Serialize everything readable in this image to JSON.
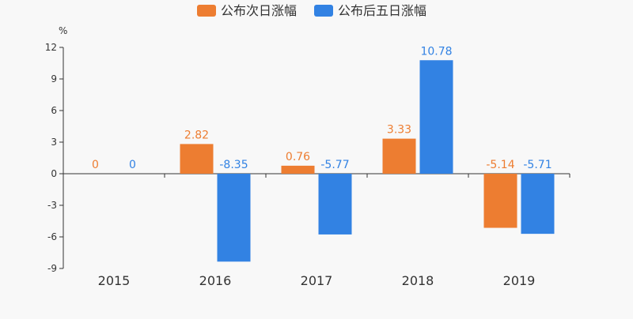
{
  "chart_data": {
    "type": "bar",
    "unit_label": "%",
    "categories": [
      "2015",
      "2016",
      "2017",
      "2018",
      "2019"
    ],
    "series": [
      {
        "name": "公布次日涨幅",
        "color": "#ed7d31",
        "values": [
          0,
          2.82,
          0.76,
          3.33,
          -5.14
        ],
        "labels": [
          "0",
          "2.82",
          "0.76",
          "3.33",
          "-5.14"
        ]
      },
      {
        "name": "公布后五日涨幅",
        "color": "#3282e3",
        "values": [
          0,
          -8.35,
          -5.77,
          10.78,
          -5.71
        ],
        "labels": [
          "0",
          "-8.35",
          "-5.77",
          "10.78",
          "-5.71"
        ]
      }
    ],
    "ylim": [
      -9,
      12
    ],
    "yticks": [
      12,
      9,
      6,
      3,
      0,
      -3,
      -6,
      -9
    ],
    "legend_position": "top-center",
    "grid": false
  }
}
